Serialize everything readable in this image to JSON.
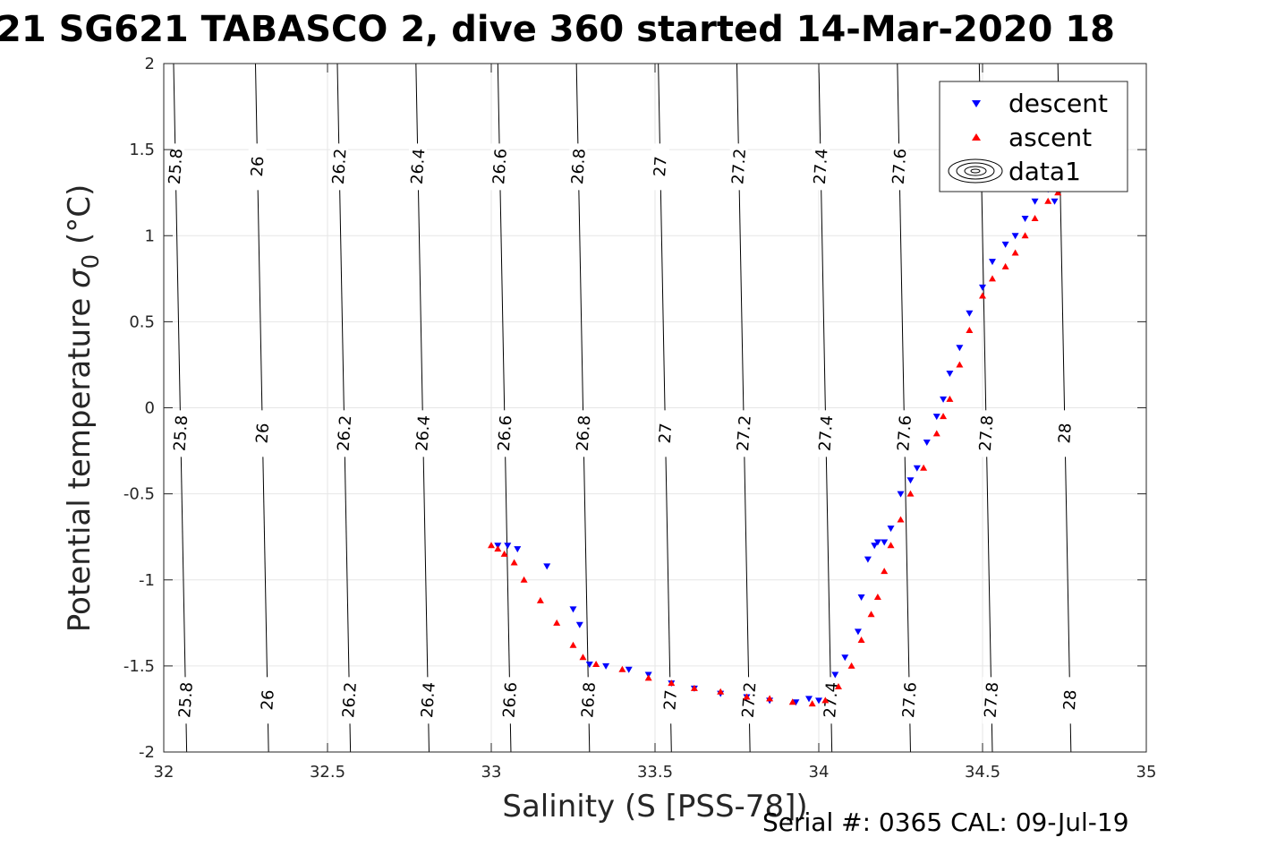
{
  "chart_data": {
    "type": "scatter",
    "title": "21 SG621 TABASCO 2, dive 360 started 14-Mar-2020 18",
    "xlabel": "Salinity (S [PSS-78])",
    "ylabel_main": "Potential temperature ",
    "ylabel_sigma": "σ",
    "ylabel_sub": "0",
    "ylabel_unit": " (°C)",
    "xlim": [
      32,
      35
    ],
    "ylim": [
      -2,
      2
    ],
    "xticks": [
      "32",
      "32.5",
      "33",
      "33.5",
      "34",
      "34.5",
      "35"
    ],
    "yticks": [
      "-2",
      "-1.5",
      "-1",
      "-0.5",
      "0",
      "0.5",
      "1",
      "1.5",
      "2"
    ],
    "grid": true,
    "legend_position": "top-right",
    "legend": [
      "descent",
      "ascent",
      "data1"
    ],
    "colors": {
      "descent": "#0000ff",
      "ascent": "#ff0000",
      "contour": "#000000",
      "grid": "#e6e6e6"
    },
    "contours": [
      {
        "level": "25.8",
        "x_bottom": 32.07,
        "x_top": 32.03
      },
      {
        "level": "26",
        "x_bottom": 32.32,
        "x_top": 32.28
      },
      {
        "level": "26.2",
        "x_bottom": 32.57,
        "x_top": 32.53
      },
      {
        "level": "26.4",
        "x_bottom": 32.81,
        "x_top": 32.77
      },
      {
        "level": "26.6",
        "x_bottom": 33.06,
        "x_top": 33.02
      },
      {
        "level": "26.8",
        "x_bottom": 33.3,
        "x_top": 33.26
      },
      {
        "level": "27",
        "x_bottom": 33.55,
        "x_top": 33.51
      },
      {
        "level": "27.2",
        "x_bottom": 33.79,
        "x_top": 33.75
      },
      {
        "level": "27.4",
        "x_bottom": 34.04,
        "x_top": 34.0
      },
      {
        "level": "27.6",
        "x_bottom": 34.28,
        "x_top": 34.24
      },
      {
        "level": "27.8",
        "x_bottom": 34.53,
        "x_top": 34.49
      },
      {
        "level": "28",
        "x_bottom": 34.77,
        "x_top": 34.73
      }
    ],
    "series": [
      {
        "name": "descent",
        "x": [
          33.02,
          33.05,
          33.08,
          33.17,
          33.25,
          33.27,
          33.3,
          33.35,
          33.42,
          33.48,
          33.55,
          33.62,
          33.7,
          33.78,
          33.85,
          33.93,
          33.97,
          34.0,
          34.05,
          34.08,
          34.12,
          34.13,
          34.15,
          34.17,
          34.18,
          34.2,
          34.22,
          34.25,
          34.28,
          34.3,
          34.33,
          34.36,
          34.38,
          34.4,
          34.43,
          34.46,
          34.5,
          34.53,
          34.57,
          34.6,
          34.63,
          34.66,
          34.7,
          34.72
        ],
        "y": [
          -0.8,
          -0.8,
          -0.82,
          -0.92,
          -1.17,
          -1.26,
          -1.49,
          -1.5,
          -1.52,
          -1.55,
          -1.6,
          -1.63,
          -1.66,
          -1.68,
          -1.7,
          -1.71,
          -1.69,
          -1.7,
          -1.55,
          -1.45,
          -1.3,
          -1.1,
          -0.88,
          -0.8,
          -0.78,
          -0.78,
          -0.7,
          -0.5,
          -0.42,
          -0.35,
          -0.2,
          -0.05,
          0.05,
          0.2,
          0.35,
          0.55,
          0.7,
          0.85,
          0.95,
          1.0,
          1.1,
          1.2,
          1.27,
          1.2
        ]
      },
      {
        "name": "ascent",
        "x": [
          33.0,
          33.02,
          33.04,
          33.07,
          33.1,
          33.15,
          33.2,
          33.25,
          33.28,
          33.32,
          33.4,
          33.48,
          33.55,
          33.62,
          33.7,
          33.78,
          33.85,
          33.92,
          33.98,
          34.02,
          34.06,
          34.1,
          34.13,
          34.16,
          34.18,
          34.2,
          34.22,
          34.25,
          34.28,
          34.32,
          34.36,
          34.38,
          34.4,
          34.43,
          34.46,
          34.5,
          34.53,
          34.57,
          34.6,
          34.63,
          34.66,
          34.7,
          34.73
        ],
        "y": [
          -0.8,
          -0.82,
          -0.85,
          -0.9,
          -1.0,
          -1.12,
          -1.25,
          -1.38,
          -1.45,
          -1.49,
          -1.52,
          -1.57,
          -1.6,
          -1.63,
          -1.65,
          -1.68,
          -1.69,
          -1.71,
          -1.72,
          -1.7,
          -1.62,
          -1.5,
          -1.35,
          -1.2,
          -1.1,
          -0.95,
          -0.8,
          -0.65,
          -0.5,
          -0.35,
          -0.15,
          -0.05,
          0.05,
          0.25,
          0.45,
          0.65,
          0.75,
          0.82,
          0.9,
          1.0,
          1.1,
          1.2,
          1.25
        ]
      }
    ]
  },
  "footer": {
    "serial": "Serial #: 0365  CAL: 09-Jul-19"
  }
}
